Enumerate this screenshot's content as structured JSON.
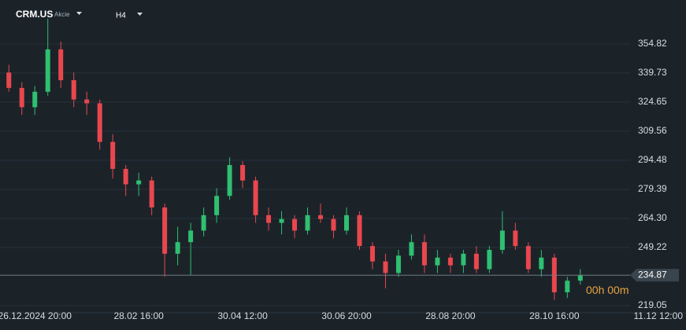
{
  "chart_data": {
    "type": "candlestick",
    "symbol": "CRM.US",
    "asset_class": "Akcie",
    "timeframe": "H4",
    "countdown": "00h 00m",
    "categories": [
      null,
      null,
      "26.12.2024  20:00",
      null,
      null,
      null,
      null,
      null,
      null,
      null,
      "28.02  16:00",
      null,
      null,
      null,
      null,
      null,
      null,
      null,
      "30.04  12:00",
      null,
      null,
      null,
      null,
      null,
      null,
      null,
      "30.06  20:00",
      null,
      null,
      null,
      null,
      null,
      null,
      null,
      "28.08  20:00",
      null,
      null,
      null,
      null,
      null,
      null,
      null,
      "28.10  16:00",
      null,
      null,
      null,
      null,
      null,
      null,
      null,
      "11.12  12:00"
    ],
    "open": [
      340,
      332,
      322,
      330,
      352,
      336,
      326,
      324,
      304,
      290,
      282,
      284,
      270,
      246,
      252,
      258,
      266,
      276,
      292,
      284,
      266,
      262,
      264,
      258,
      266,
      264,
      258,
      266,
      250,
      242,
      236,
      245,
      252,
      240,
      244,
      240,
      246,
      238,
      248,
      258,
      250,
      238,
      244,
      226,
      232,
      null,
      null,
      null,
      null,
      null,
      null
    ],
    "high": [
      344,
      335,
      333,
      368,
      356,
      340,
      330,
      326,
      308,
      292,
      288,
      286,
      272,
      260,
      262,
      270,
      280,
      296,
      294,
      286,
      270,
      268,
      266,
      270,
      272,
      266,
      270,
      268,
      252,
      246,
      248,
      256,
      256,
      248,
      246,
      248,
      250,
      250,
      268,
      262,
      252,
      248,
      246,
      234,
      238,
      null,
      null,
      null,
      null,
      null,
      null
    ],
    "low": [
      330,
      318,
      318,
      328,
      332,
      322,
      318,
      300,
      285,
      276,
      276,
      266,
      234,
      240,
      235,
      255,
      262,
      274,
      280,
      262,
      258,
      256,
      254,
      256,
      262,
      254,
      256,
      248,
      238,
      228,
      234,
      243,
      236,
      236,
      236,
      236,
      236,
      236,
      246,
      248,
      236,
      234,
      222,
      223,
      230,
      null,
      null,
      null,
      null,
      null,
      null
    ],
    "close": [
      332,
      322,
      330,
      352,
      336,
      326,
      324,
      304,
      290,
      282,
      284,
      270,
      246,
      252,
      258,
      266,
      276,
      292,
      284,
      266,
      262,
      264,
      258,
      266,
      264,
      258,
      266,
      250,
      242,
      236,
      245,
      252,
      240,
      244,
      240,
      246,
      238,
      248,
      258,
      250,
      238,
      244,
      226,
      232,
      234.87,
      null,
      null,
      null,
      null,
      null,
      null
    ],
    "up_color": "#2fbf71",
    "down_color": "#e8474e",
    "last_price": 234.87,
    "ylim": [
      215.4,
      377.6
    ],
    "yticks": [
      219.05,
      249.22,
      {
        "value": 264.3,
        "label": "264.30"
      },
      279.39,
      294.48,
      309.56,
      324.65,
      339.73,
      354.82
    ],
    "grid": true
  }
}
